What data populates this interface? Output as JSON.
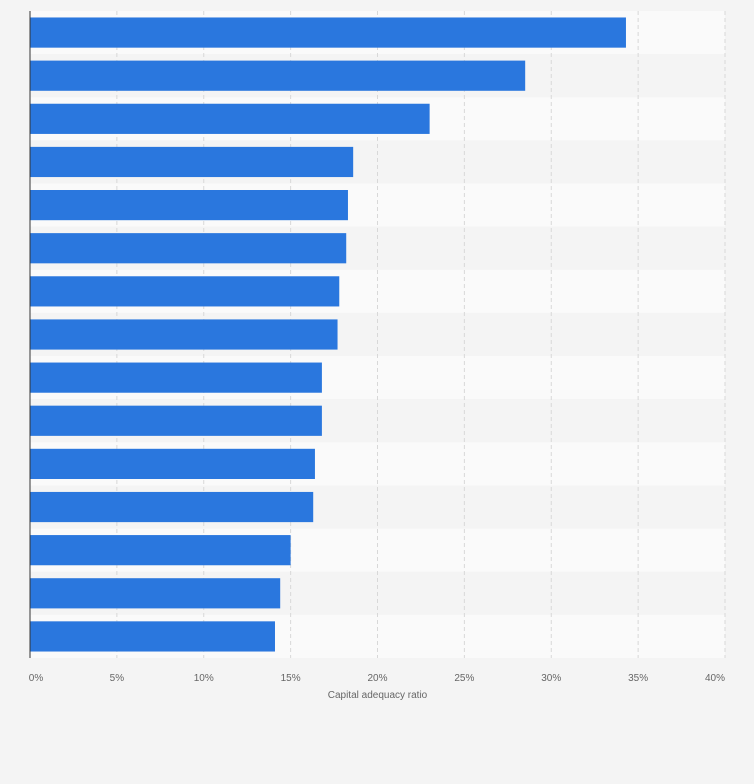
{
  "chart_data": {
    "type": "bar",
    "orientation": "horizontal",
    "categories": [
      "",
      "",
      "",
      "",
      "",
      "",
      "",
      "",
      "",
      "",
      "",
      "",
      "",
      "",
      ""
    ],
    "values": [
      34.3,
      28.5,
      23.0,
      18.6,
      18.3,
      18.2,
      17.8,
      17.7,
      16.8,
      16.8,
      16.4,
      16.3,
      15.0,
      14.4,
      14.1
    ],
    "title": "",
    "xlabel": "Capital adequacy ratio",
    "ylabel": "",
    "xlim": [
      0,
      40
    ],
    "x_ticks": [
      "0%",
      "5%",
      "10%",
      "15%",
      "20%",
      "25%",
      "30%",
      "35%",
      "40%"
    ],
    "grid": "vertical dashed",
    "legend": "none",
    "colors": {
      "bar": "#2a77de",
      "band_light": "#fafafa",
      "band_dark": "#f4f4f4",
      "grid": "#d8d8d8",
      "axis": "#333333",
      "tick_label": "#666666"
    }
  }
}
